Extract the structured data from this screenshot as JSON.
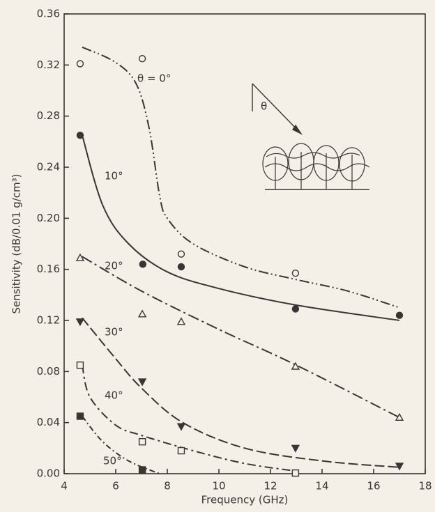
{
  "chart_data": {
    "type": "scatter",
    "xlabel": "Frequency (GHz)",
    "ylabel": "Sensitivity (dB/0.01 g/cm³)",
    "inset_label": "θ",
    "xlim": [
      4,
      18
    ],
    "xticks": [
      4,
      6,
      8,
      10,
      12,
      14,
      16,
      18
    ],
    "ylim": [
      0,
      0.36
    ],
    "yticks": [
      {
        "value": 0,
        "label": "0.00"
      },
      {
        "value": 0.04,
        "label": "0.04"
      },
      {
        "value": 0.08,
        "label": "0.08"
      },
      {
        "value": 0.12,
        "label": "0.12"
      },
      {
        "value": 0.16,
        "label": "0.16"
      },
      {
        "value": 0.2,
        "label": "0.20"
      },
      {
        "value": 0.24,
        "label": "0.24"
      },
      {
        "value": 0.28,
        "label": "0.28"
      },
      {
        "value": 0.32,
        "label": "0.32"
      },
      {
        "value": 0.36,
        "label": "0.36"
      }
    ],
    "color": "#3a3434",
    "series": [
      {
        "name": "θ = 0°",
        "marker": "circle-open",
        "dash": "14 4 2 4 2 4",
        "x": [
          4.62,
          7.03,
          8.54,
          12.97
        ],
        "values": [
          0.321,
          0.325,
          0.172,
          0.157
        ],
        "fit_x": [
          4.7,
          6,
          6.8,
          7.3,
          7.7,
          8,
          9,
          11,
          13,
          15,
          17
        ],
        "fit_y": [
          0.334,
          0.322,
          0.305,
          0.27,
          0.218,
          0.2,
          0.18,
          0.162,
          0.152,
          0.143,
          0.13
        ]
      },
      {
        "name": "10°",
        "marker": "circle-filled",
        "dash": "none",
        "x": [
          4.62,
          7.05,
          8.54,
          12.97,
          17.0
        ],
        "values": [
          0.265,
          0.164,
          0.162,
          0.129,
          0.124
        ],
        "fit_x": [
          4.7,
          5.5,
          6.5,
          8,
          10,
          13,
          17
        ],
        "fit_y": [
          0.265,
          0.21,
          0.18,
          0.158,
          0.145,
          0.132,
          0.12
        ]
      },
      {
        "name": "20°",
        "marker": "triangle-open",
        "dash": "16 5 3 5",
        "x": [
          4.62,
          7.03,
          8.54,
          12.97,
          17.0
        ],
        "values": [
          0.169,
          0.125,
          0.119,
          0.084,
          0.044
        ],
        "fit_x": [
          4.7,
          7,
          10,
          13,
          17
        ],
        "fit_y": [
          0.17,
          0.143,
          0.113,
          0.085,
          0.044
        ]
      },
      {
        "name": "30°",
        "marker": "triangle-down-filled",
        "dash": "14 5",
        "x": [
          4.62,
          7.03,
          8.54,
          12.97,
          17.0
        ],
        "values": [
          0.119,
          0.072,
          0.037,
          0.02,
          0.006
        ],
        "fit_x": [
          4.7,
          6,
          7,
          8.6,
          11,
          14,
          17
        ],
        "fit_y": [
          0.122,
          0.09,
          0.067,
          0.04,
          0.02,
          0.01,
          0.005
        ]
      },
      {
        "name": "40°",
        "marker": "square-open",
        "dash": "12 5 3 5",
        "x": [
          4.62,
          7.03,
          8.54,
          12.97
        ],
        "values": [
          0.085,
          0.025,
          0.018,
          0.0005
        ],
        "fit_x": [
          4.7,
          5,
          6,
          7,
          9,
          11,
          13
        ],
        "fit_y": [
          0.085,
          0.06,
          0.038,
          0.03,
          0.018,
          0.008,
          0.002
        ]
      },
      {
        "name": "50°",
        "marker": "square-filled",
        "dash": "8 4 2 4",
        "x": [
          4.62,
          7.03
        ],
        "values": [
          0.045,
          0.003
        ],
        "fit_x": [
          4.7,
          5.5,
          6.5,
          7.7
        ],
        "fit_y": [
          0.045,
          0.025,
          0.01,
          0
        ]
      }
    ]
  }
}
